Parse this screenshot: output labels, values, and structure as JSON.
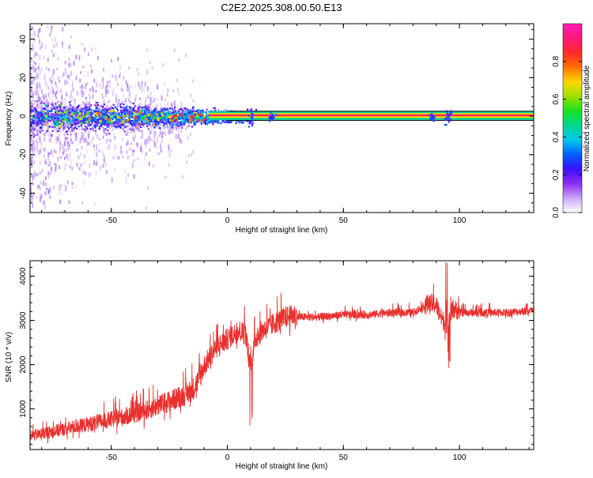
{
  "chart_data": [
    {
      "type": "heatmap",
      "title": "C2E2.2025.308.00.50.E13",
      "xlabel": "Height of straight line (km)",
      "ylabel": "Frequency (Hz)",
      "xlim": [
        -85,
        132
      ],
      "ylim": [
        -50,
        48
      ],
      "xticks": [
        -50,
        0,
        50,
        100
      ],
      "yticks": [
        -40,
        -20,
        0,
        20,
        40
      ],
      "colorbar": {
        "label": "Normalized spectral amplitude",
        "range": [
          0,
          1
        ],
        "ticks": [
          "0.0",
          "0.2",
          "0.4",
          "0.6",
          "0.8"
        ],
        "colors": [
          "#ffffff",
          "#c9a6f5",
          "#8b2cf0",
          "#3a10ff",
          "#0060ff",
          "#00c8e6",
          "#00d890",
          "#18e020",
          "#9be000",
          "#ffd800",
          "#ff7000",
          "#ff2a2a",
          "#ff1a78",
          "#ff1ab8"
        ]
      },
      "description_series": [
        {
          "name": "carrier band",
          "x_range": [
            0,
            132
          ],
          "freq_center_hz": 0.5,
          "amplitude": 0.85
        },
        {
          "name": "scatter region",
          "x_range": [
            -85,
            0
          ],
          "freq_spread_hz": 45
        }
      ]
    },
    {
      "type": "line",
      "xlabel": "Height of straight line (km)",
      "ylabel": "SNR (10 * v/v)",
      "xlim": [
        -85,
        132
      ],
      "ylim": [
        80,
        4350
      ],
      "xticks": [
        -50,
        0,
        50,
        100
      ],
      "yticks": [
        1000,
        2000,
        3000,
        4000
      ],
      "color": "#e8302e",
      "series": [
        {
          "name": "SNR",
          "x": [
            -85,
            -80,
            -75,
            -70,
            -65,
            -60,
            -55,
            -50,
            -45,
            -40,
            -35,
            -30,
            -25,
            -20,
            -15,
            -12,
            -10,
            -5,
            0,
            5,
            8,
            10,
            12,
            15,
            20,
            25,
            30,
            40,
            50,
            60,
            70,
            80,
            85,
            90,
            92,
            95,
            97,
            100,
            110,
            120,
            132
          ],
          "values": [
            350,
            400,
            450,
            500,
            550,
            600,
            650,
            700,
            750,
            820,
            900,
            1000,
            1100,
            1200,
            1350,
            1600,
            1900,
            2300,
            2500,
            2700,
            2600,
            1800,
            2500,
            2700,
            2850,
            3000,
            3050,
            3050,
            3100,
            3100,
            3150,
            3150,
            3300,
            3300,
            3000,
            2800,
            3200,
            3150,
            3150,
            3150,
            3200
          ]
        }
      ]
    }
  ]
}
